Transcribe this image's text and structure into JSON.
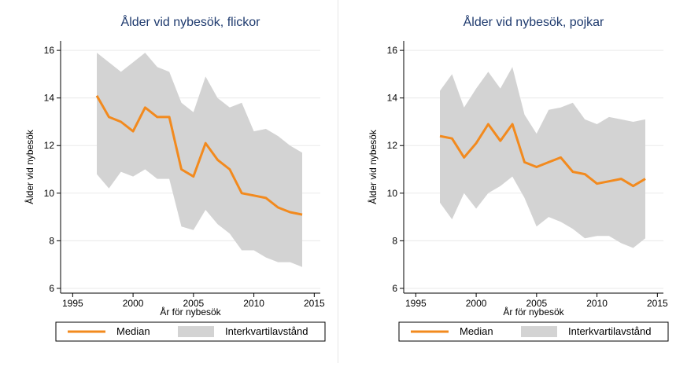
{
  "chart_data": [
    {
      "type": "line",
      "title": "Ålder vid nybesök, flickor",
      "xlabel": "År för nybesök",
      "ylabel": "Ålder vid nybesök",
      "xlim": [
        1994,
        2015.5
      ],
      "ylim": [
        5.8,
        16.4
      ],
      "xticks": [
        1995,
        2000,
        2005,
        2010,
        2015
      ],
      "yticks": [
        6,
        8,
        10,
        12,
        14,
        16
      ],
      "grid": true,
      "legend_position": "bottom",
      "x": [
        1997,
        1998,
        1999,
        2000,
        2001,
        2002,
        2003,
        2004,
        2005,
        2006,
        2007,
        2008,
        2009,
        2010,
        2011,
        2012,
        2013,
        2014
      ],
      "series": [
        {
          "name": "Median",
          "color": "#f28a1e",
          "values": [
            14.1,
            13.2,
            13.0,
            12.6,
            13.6,
            13.2,
            13.2,
            11.0,
            10.7,
            12.1,
            11.4,
            11.0,
            10.0,
            9.9,
            9.8,
            9.4,
            9.2,
            9.1
          ]
        },
        {
          "name": "Interkvartilavstånd",
          "color": "#d3d3d3",
          "lower": [
            10.8,
            10.2,
            10.9,
            10.7,
            11.0,
            10.6,
            10.6,
            8.6,
            8.45,
            9.3,
            8.7,
            8.3,
            7.6,
            7.6,
            7.3,
            7.1,
            7.1,
            6.9
          ],
          "upper": [
            15.9,
            15.5,
            15.1,
            15.5,
            15.9,
            15.3,
            15.1,
            13.8,
            13.4,
            14.9,
            14.0,
            13.6,
            13.8,
            12.6,
            12.7,
            12.4,
            12.0,
            11.7
          ]
        }
      ]
    },
    {
      "type": "line",
      "title": "Ålder vid nybesök, pojkar",
      "xlabel": "År för nybesök",
      "ylabel": "Ålder vid nybesök",
      "xlim": [
        1994,
        2015.5
      ],
      "ylim": [
        5.8,
        16.4
      ],
      "xticks": [
        1995,
        2000,
        2005,
        2010,
        2015
      ],
      "yticks": [
        6,
        8,
        10,
        12,
        14,
        16
      ],
      "grid": true,
      "legend_position": "bottom",
      "x": [
        1997,
        1998,
        1999,
        2000,
        2001,
        2002,
        2003,
        2004,
        2005,
        2006,
        2007,
        2008,
        2009,
        2010,
        2011,
        2012,
        2013,
        2014
      ],
      "series": [
        {
          "name": "Median",
          "color": "#f28a1e",
          "values": [
            12.4,
            12.3,
            11.5,
            12.1,
            12.9,
            12.2,
            12.9,
            11.3,
            11.1,
            11.3,
            11.5,
            10.9,
            10.8,
            10.4,
            10.5,
            10.6,
            10.3,
            10.6
          ]
        },
        {
          "name": "Interkvartilavstånd",
          "color": "#d3d3d3",
          "lower": [
            9.6,
            8.9,
            10.0,
            9.35,
            10.0,
            10.3,
            10.7,
            9.8,
            8.6,
            9.0,
            8.8,
            8.5,
            8.1,
            8.2,
            8.2,
            7.9,
            7.7,
            8.1
          ],
          "upper": [
            14.3,
            15.0,
            13.6,
            14.4,
            15.1,
            14.4,
            15.3,
            13.3,
            12.5,
            13.5,
            13.6,
            13.8,
            13.1,
            12.9,
            13.2,
            13.1,
            13.0,
            13.1
          ]
        }
      ]
    }
  ]
}
